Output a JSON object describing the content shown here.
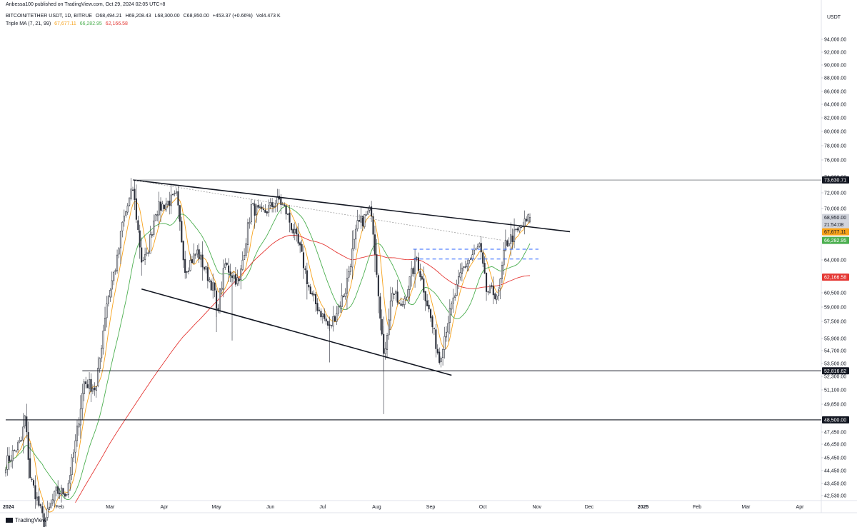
{
  "header": {
    "publisher": "Anbessa100 published on TradingView.com, Oct 29, 2024 02:05 UTC+8",
    "symbol": "BITCOIN/TETHER USDT, 1D, BITRUE",
    "open": "O68,494.21",
    "high": "H69,208.43",
    "low": "L68,300.00",
    "close": "C68,950.00",
    "change": "+453.37 (+0.66%)",
    "volume": "Vol4.473 K",
    "ma_label": "Triple MA (7, 21, 99)",
    "ma7": "67,677.11",
    "ma21": "66,282.95",
    "ma99": "62,166.58"
  },
  "footer": {
    "brand": "TradingView"
  },
  "colors": {
    "ma7": "#f7a21b",
    "ma21": "#4caf50",
    "ma99": "#e53935",
    "candle": "#2a2e39",
    "trendline": "#131722",
    "dashed_level": "#2962ff",
    "dotted_line": "#9e9e9e"
  },
  "chart_data": {
    "type": "candlestick",
    "currency": "USDT",
    "y_ticks": [
      "94,000.00",
      "92,000.00",
      "90,000.00",
      "88,000.00",
      "86,000.00",
      "84,000.00",
      "82,000.00",
      "80,000.00",
      "78,000.00",
      "76,000.00",
      "74,000.00",
      "72,000.00",
      "70,000.00",
      "64,000.00",
      "60,500.00",
      "59,000.00",
      "57,500.00",
      "55,900.00",
      "54,700.00",
      "53,500.00",
      "52,300.00",
      "51,100.00",
      "49,850.00",
      "47,450.00",
      "46,450.00",
      "45,450.00",
      "44,450.00",
      "43,450.00",
      "42,530.00"
    ],
    "y_tick_values": [
      94000,
      92000,
      90000,
      88000,
      86000,
      84000,
      82000,
      80000,
      78000,
      76000,
      74000,
      72000,
      70000,
      64000,
      60500,
      59000,
      57500,
      55900,
      54700,
      53500,
      52300,
      51100,
      49850,
      47450,
      46450,
      45450,
      44450,
      43450,
      42530
    ],
    "x_ticks": [
      "2024",
      "Feb",
      "Mar",
      "Apr",
      "May",
      "Jun",
      "Jul",
      "Aug",
      "Sep",
      "Oct",
      "Nov",
      "Dec",
      "2025",
      "Feb",
      "Mar",
      "Apr"
    ],
    "x_tick_dates": [
      "2024-01-01",
      "2024-02-01",
      "2024-03-01",
      "2024-04-01",
      "2024-05-01",
      "2024-06-01",
      "2024-07-01",
      "2024-08-01",
      "2024-09-01",
      "2024-10-01",
      "2024-11-01",
      "2024-12-01",
      "2025-01-01",
      "2025-02-01",
      "2025-03-01",
      "2025-04-01"
    ],
    "price_tags": [
      {
        "label": "73,630.71",
        "value": 73630.71,
        "style": "dark"
      },
      {
        "label": "68,950.00",
        "value": 68950,
        "style": "light"
      },
      {
        "label": "21:54:08",
        "value": 68100,
        "style": "light"
      },
      {
        "label": "67,677.11",
        "value": 67677.11,
        "style": "ma7"
      },
      {
        "label": "66,282.95",
        "value": 66282.95,
        "style": "ma21"
      },
      {
        "label": "62,166.58",
        "value": 62166.58,
        "style": "ma99"
      },
      {
        "label": "52,816.62",
        "value": 52816.62,
        "style": "dark"
      },
      {
        "label": "48,500.00",
        "value": 48500,
        "style": "dark"
      }
    ],
    "horizontal_levels": [
      {
        "value": 73630.71,
        "from": "2024-03-14",
        "style": "thin"
      },
      {
        "value": 52816.62,
        "from": "2024-02-14",
        "style": "solid"
      },
      {
        "value": 48500,
        "from": "2024-01-01",
        "style": "solid"
      }
    ],
    "dashed_levels": [
      {
        "value": 65250,
        "from": "2024-08-22",
        "to": "2024-10-28"
      },
      {
        "value": 64100,
        "from": "2024-08-22",
        "to": "2024-10-28"
      }
    ],
    "trendlines": [
      {
        "from": [
          "2024-03-14",
          73630
        ],
        "to": [
          "2024-11-20",
          67300
        ],
        "style": "solid"
      },
      {
        "from": [
          "2024-03-19",
          60900
        ],
        "to": [
          "2024-09-13",
          52400
        ],
        "style": "solid"
      },
      {
        "from": [
          "2024-03-14",
          73630
        ],
        "to": [
          "2024-10-12",
          66300
        ],
        "style": "dotted"
      }
    ],
    "price_anchors": [
      [
        "2024-01-01",
        45000
      ],
      [
        "2024-01-10",
        46700
      ],
      [
        "2024-01-12",
        48700
      ],
      [
        "2024-01-15",
        44000
      ],
      [
        "2024-01-23",
        40500
      ],
      [
        "2024-01-30",
        42800
      ],
      [
        "2024-02-05",
        42800
      ],
      [
        "2024-02-10",
        46500
      ],
      [
        "2024-02-15",
        51800
      ],
      [
        "2024-02-22",
        51200
      ],
      [
        "2024-02-28",
        59500
      ],
      [
        "2024-03-05",
        64000
      ],
      [
        "2024-03-08",
        68200
      ],
      [
        "2024-03-14",
        72500
      ],
      [
        "2024-03-19",
        64000
      ],
      [
        "2024-03-22",
        64300
      ],
      [
        "2024-03-27",
        69800
      ],
      [
        "2024-04-08",
        71500
      ],
      [
        "2024-04-13",
        63000
      ],
      [
        "2024-04-20",
        64900
      ],
      [
        "2024-04-30",
        60600
      ],
      [
        "2024-05-01",
        58300
      ],
      [
        "2024-05-06",
        63500
      ],
      [
        "2024-05-14",
        61500
      ],
      [
        "2024-05-21",
        70200
      ],
      [
        "2024-05-27",
        69300
      ],
      [
        "2024-06-06",
        71100
      ],
      [
        "2024-06-10",
        69600
      ],
      [
        "2024-06-18",
        65200
      ],
      [
        "2024-06-24",
        60300
      ],
      [
        "2024-07-05",
        56800
      ],
      [
        "2024-07-14",
        60800
      ],
      [
        "2024-07-21",
        68000
      ],
      [
        "2024-07-29",
        69800
      ],
      [
        "2024-08-05",
        53900
      ],
      [
        "2024-08-10",
        60800
      ],
      [
        "2024-08-15",
        58800
      ],
      [
        "2024-08-24",
        64200
      ],
      [
        "2024-09-01",
        57800
      ],
      [
        "2024-09-06",
        53800
      ],
      [
        "2024-09-10",
        57000
      ],
      [
        "2024-09-19",
        62900
      ],
      [
        "2024-09-29",
        65600
      ],
      [
        "2024-10-03",
        60700
      ],
      [
        "2024-10-10",
        60300
      ],
      [
        "2024-10-14",
        65900
      ],
      [
        "2024-10-21",
        67300
      ],
      [
        "2024-10-28",
        68950
      ]
    ]
  }
}
